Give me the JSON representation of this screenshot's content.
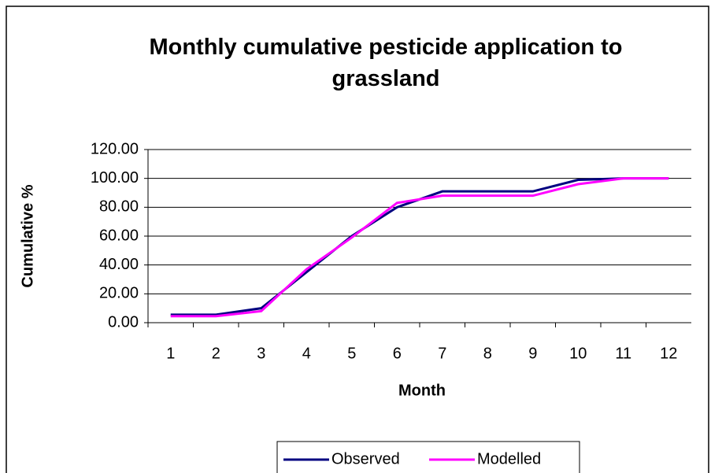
{
  "chart_data": {
    "type": "line",
    "title": "Monthly cumulative pesticide application to grassland",
    "x_label": "Month",
    "y_label": "Cumulative %",
    "categories": [
      "1",
      "2",
      "3",
      "4",
      "5",
      "6",
      "7",
      "8",
      "9",
      "10",
      "11",
      "12"
    ],
    "series": [
      {
        "name": "Observed",
        "color": "#000080",
        "values": [
          5.5,
          5.5,
          10,
          35,
          60,
          80,
          91,
          91,
          91,
          99,
          100,
          100
        ]
      },
      {
        "name": "Modelled",
        "color": "#ff00ff",
        "values": [
          4.5,
          4.5,
          8,
          37,
          59,
          83,
          88,
          88,
          88,
          96,
          100,
          100
        ]
      }
    ],
    "ylim": [
      0,
      120
    ],
    "yticks": [
      {
        "value": 0,
        "label": "0.00"
      },
      {
        "value": 20,
        "label": "20.00"
      },
      {
        "value": 40,
        "label": "40.00"
      },
      {
        "value": 60,
        "label": "60.00"
      },
      {
        "value": 80,
        "label": "80.00"
      },
      {
        "value": 100,
        "label": "100.00"
      },
      {
        "value": 120,
        "label": "120.00"
      }
    ],
    "grid": true,
    "legend": "bottom"
  }
}
